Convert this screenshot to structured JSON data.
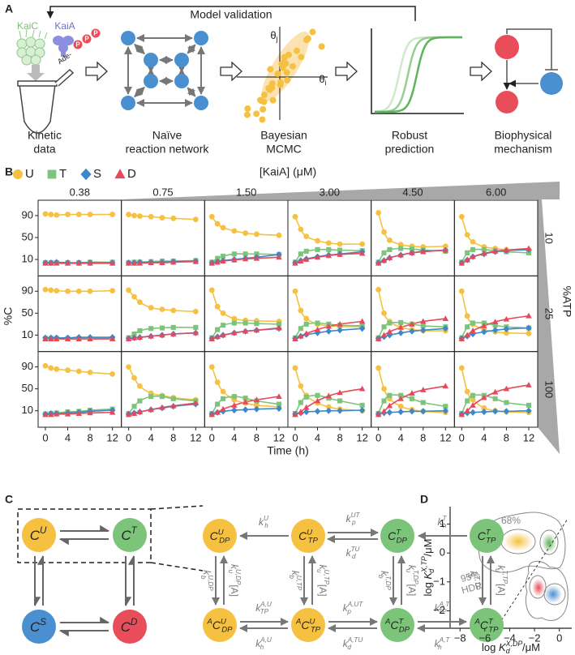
{
  "panel_a": {
    "label": "A",
    "validation": "Model validation",
    "kaic": "KaiC",
    "kaia": "KaiA",
    "ade": "Ade-",
    "phosphates": [
      "P",
      "P",
      "P"
    ],
    "theta_j": {
      "base": "θ",
      "sub": "j"
    },
    "theta_i": {
      "base": "θ",
      "sub": "i"
    },
    "steps": [
      [
        "Kinetic",
        "data"
      ],
      [
        "Naïve",
        "reaction network"
      ],
      [
        "Bayesian",
        "MCMC"
      ],
      [
        "Robust",
        "prediction"
      ],
      [
        "Biophysical",
        "mechanism"
      ]
    ]
  },
  "chart_data": {
    "type": "line",
    "label": "B",
    "column_title": "[KaiA] (μM)",
    "row_title": "%ATP",
    "columns": [
      "0.38",
      "0.75",
      "1.50",
      "3.00",
      "4.50",
      "6.00"
    ],
    "rows": [
      "10",
      "25",
      "100"
    ],
    "ylabel": "%C",
    "xlabel": "Time (h)",
    "x": [
      0,
      1,
      2,
      4,
      6,
      8,
      12
    ],
    "xlim": [
      -1.3,
      13.6
    ],
    "ylim": [
      -20,
      118
    ],
    "xticks": [
      0,
      4,
      8,
      12
    ],
    "yticks": [
      10,
      50,
      90
    ],
    "series": [
      {
        "name": "U",
        "color": "#f6c141",
        "marker": "circle",
        "values": [
          [
            [
              93,
              92,
              91,
              92,
              92,
              92,
              92
            ],
            [
              92,
              90,
              89,
              88,
              86,
              85,
              83
            ],
            [
              88,
              75,
              68,
              62,
              58,
              56,
              54
            ],
            [
              88,
              65,
              52,
              44,
              40,
              38,
              38
            ],
            [
              95,
              60,
              45,
              37,
              34,
              33,
              34
            ],
            [
              88,
              55,
              42,
              33,
              30,
              28,
              27
            ]
          ],
          [
            [
              93,
              92,
              91,
              90,
              90,
              90,
              91
            ],
            [
              92,
              80,
              70,
              60,
              57,
              55,
              53
            ],
            [
              92,
              62,
              50,
              40,
              37,
              36,
              35
            ],
            [
              90,
              55,
              40,
              30,
              27,
              26,
              25
            ],
            [
              93,
              50,
              35,
              24,
              20,
              18,
              18
            ],
            [
              90,
              45,
              30,
              20,
              16,
              14,
              13
            ]
          ],
          [
            [
              92,
              88,
              86,
              84,
              82,
              80,
              77
            ],
            [
              90,
              70,
              55,
              42,
              38,
              34,
              30
            ],
            [
              90,
              62,
              45,
              30,
              24,
              20,
              17
            ],
            [
              88,
              55,
              38,
              24,
              17,
              13,
              10
            ],
            [
              88,
              50,
              32,
              18,
              12,
              9,
              7
            ],
            [
              88,
              45,
              30,
              15,
              10,
              8,
              7
            ]
          ]
        ]
      },
      {
        "name": "T",
        "color": "#7cc47a",
        "marker": "square",
        "values": [
          [
            [
              4,
              4,
              4,
              4,
              4,
              5,
              5
            ],
            [
              4,
              5,
              5,
              6,
              7,
              7,
              8
            ],
            [
              5,
              12,
              16,
              20,
              20,
              20,
              19
            ],
            [
              5,
              20,
              25,
              28,
              28,
              27,
              26
            ],
            [
              5,
              22,
              28,
              30,
              29,
              27,
              25
            ],
            [
              5,
              22,
              28,
              28,
              26,
              24,
              22
            ]
          ],
          [
            [
              4,
              4,
              4,
              4,
              4,
              4,
              4
            ],
            [
              5,
              12,
              18,
              22,
              23,
              24,
              24
            ],
            [
              5,
              20,
              28,
              32,
              32,
              31,
              30
            ],
            [
              5,
              22,
              30,
              32,
              30,
              28,
              27
            ],
            [
              5,
              25,
              32,
              33,
              30,
              27,
              25
            ],
            [
              5,
              25,
              32,
              32,
              28,
              25,
              23
            ]
          ],
          [
            [
              4,
              5,
              6,
              8,
              9,
              11,
              13
            ],
            [
              5,
              18,
              28,
              36,
              36,
              32,
              28
            ],
            [
              5,
              22,
              32,
              36,
              33,
              28,
              22
            ],
            [
              5,
              25,
              35,
              38,
              33,
              28,
              20
            ],
            [
              5,
              28,
              38,
              38,
              32,
              25,
              18
            ],
            [
              5,
              28,
              38,
              38,
              32,
              25,
              20
            ]
          ]
        ]
      },
      {
        "name": "S",
        "color": "#3e88c8",
        "marker": "diamond",
        "values": [
          [
            [
              4,
              4,
              5,
              4,
              4,
              4,
              4
            ],
            [
              4,
              4,
              5,
              5,
              5,
              6,
              7
            ],
            [
              4,
              6,
              8,
              10,
              12,
              14,
              19
            ],
            [
              4,
              8,
              11,
              15,
              18,
              20,
              24
            ],
            [
              4,
              8,
              13,
              18,
              22,
              25,
              27
            ],
            [
              4,
              9,
              15,
              20,
              24,
              26,
              28
            ]
          ],
          [
            [
              5,
              5,
              5,
              5,
              6,
              6,
              6
            ],
            [
              4,
              5,
              6,
              8,
              10,
              12,
              14
            ],
            [
              4,
              7,
              10,
              14,
              17,
              19,
              22
            ],
            [
              4,
              8,
              11,
              14,
              17,
              19,
              22
            ],
            [
              4,
              7,
              10,
              14,
              17,
              19,
              22
            ],
            [
              4,
              8,
              12,
              16,
              19,
              21,
              23
            ]
          ],
          [
            [
              4,
              5,
              5,
              6,
              7,
              9,
              11
            ],
            [
              4,
              6,
              8,
              12,
              15,
              18,
              22
            ],
            [
              4,
              7,
              9,
              11,
              12,
              13,
              14
            ],
            [
              4,
              6,
              8,
              9,
              10,
              10,
              11
            ],
            [
              4,
              6,
              7,
              8,
              9,
              9,
              10
            ],
            [
              4,
              6,
              7,
              8,
              9,
              9,
              10
            ]
          ]
        ]
      },
      {
        "name": "D",
        "color": "#e8495a",
        "marker": "triangle",
        "values": [
          [
            [
              3,
              3,
              3,
              3,
              3,
              3,
              3
            ],
            [
              3,
              3,
              3,
              4,
              4,
              5,
              6
            ],
            [
              3,
              5,
              7,
              9,
              11,
              12,
              14
            ],
            [
              3,
              7,
              10,
              14,
              17,
              19,
              21
            ],
            [
              3,
              8,
              13,
              18,
              22,
              24,
              27
            ],
            [
              3,
              9,
              15,
              21,
              25,
              27,
              30
            ]
          ],
          [
            [
              3,
              3,
              3,
              3,
              3,
              3,
              3
            ],
            [
              3,
              5,
              6,
              8,
              10,
              12,
              14
            ],
            [
              3,
              7,
              10,
              14,
              17,
              19,
              23
            ],
            [
              3,
              8,
              13,
              20,
              26,
              30,
              35
            ],
            [
              3,
              10,
              16,
              24,
              30,
              35,
              40
            ],
            [
              3,
              10,
              18,
              27,
              34,
              39,
              45
            ]
          ],
          [
            [
              3,
              3,
              4,
              4,
              5,
              6,
              7
            ],
            [
              3,
              5,
              8,
              12,
              16,
              19,
              24
            ],
            [
              3,
              7,
              13,
              20,
              26,
              30,
              36
            ],
            [
              3,
              8,
              16,
              28,
              37,
              43,
              50
            ],
            [
              3,
              9,
              19,
              32,
              42,
              48,
              55
            ],
            [
              3,
              10,
              20,
              34,
              44,
              50,
              57
            ]
          ]
        ]
      }
    ]
  },
  "panel_c": {
    "label": "C",
    "core": [
      {
        "base": "C",
        "sup": "U",
        "color": "#f6c141"
      },
      {
        "base": "C",
        "sup": "T",
        "color": "#7cc47a"
      },
      {
        "base": "C",
        "sup": "S",
        "color": "#4a8fd0"
      },
      {
        "base": "C",
        "sup": "D",
        "color": "#e94d5a"
      }
    ],
    "nodes": [
      {
        "base": "C",
        "sup": "U",
        "sub": "DP",
        "color": "#f6c141"
      },
      {
        "base": "C",
        "sup": "U",
        "sub": "TP",
        "color": "#f6c141"
      },
      {
        "base": "C",
        "sup": "T",
        "sub": "DP",
        "color": "#7cc47a"
      },
      {
        "base": "C",
        "sup": "T",
        "sub": "TP",
        "color": "#7cc47a"
      },
      {
        "left_sup": "A",
        "base": "C",
        "sup": "U",
        "sub": "DP",
        "color": "#f6c141"
      },
      {
        "left_sup": "A",
        "base": "C",
        "sup": "U",
        "sub": "TP",
        "color": "#f6c141"
      },
      {
        "left_sup": "A",
        "base": "C",
        "sup": "T",
        "sub": "DP",
        "color": "#7cc47a"
      },
      {
        "left_sup": "A",
        "base": "C",
        "sup": "T",
        "sub": "TP",
        "color": "#7cc47a"
      }
    ],
    "rates": [
      {
        "base": "k",
        "sup": "U",
        "sub": "h"
      },
      {
        "base": "k",
        "sup": "UT",
        "sub": "p"
      },
      {
        "base": "k",
        "sup": "TU",
        "sub": "d"
      },
      {
        "base": "k",
        "sup": "T",
        "sub": "h"
      },
      {
        "base": "k",
        "sup": "A,U",
        "sub": "TP"
      },
      {
        "base": "k",
        "sup": "A,U",
        "sub": "h"
      },
      {
        "base": "k",
        "sup": "A,UT",
        "sub": "p"
      },
      {
        "base": "k",
        "sup": "A,TU",
        "sub": "d"
      },
      {
        "base": "k",
        "sup": "A,T",
        "sub": "TP"
      },
      {
        "base": "k",
        "sup": "A,T",
        "sub": "h"
      },
      {
        "base": "k",
        "sup": "U,DP",
        "sub": "b"
      },
      {
        "base": "k",
        "sup": "U,DP",
        "sub": "u",
        "post": "[A]"
      },
      {
        "base": "k",
        "sup": "U,TP",
        "sub": "b"
      },
      {
        "base": "k",
        "sup": "U,TP",
        "sub": "u",
        "post": "[A]"
      },
      {
        "base": "k",
        "sup": "T,DP",
        "sub": "b"
      },
      {
        "base": "k",
        "sup": "T,DP",
        "sub": "u",
        "post": "[A]"
      },
      {
        "base": "k",
        "sup": "T,TP",
        "sub": "b"
      },
      {
        "base": "k",
        "sup": "T,TP",
        "sub": "u",
        "post": "[A]"
      }
    ]
  },
  "panel_d": {
    "label": "D",
    "xlim": [
      -8.8,
      1
    ],
    "ylim": [
      -2.6,
      1.6
    ],
    "xticks": [
      {
        "value": -8,
        "label": "−8"
      },
      {
        "value": -6,
        "label": "−6"
      },
      {
        "value": -4,
        "label": "−4"
      },
      {
        "value": -2,
        "label": "−2"
      },
      0
    ],
    "yticks": [
      1,
      0,
      {
        "value": -1,
        "label": "−1"
      },
      {
        "value": -2,
        "label": "−2"
      }
    ],
    "xlabel": {
      "prefix": "log ",
      "base": "K",
      "sub": "d",
      "sup": "X,DP",
      "post": "/μM"
    },
    "ylabel": {
      "prefix": "log ",
      "base": "K",
      "sub": "d",
      "sup": "X,TP",
      "post": "/μM"
    },
    "inner_label": "68%",
    "outer_label": [
      "95%",
      "HDR"
    ]
  }
}
